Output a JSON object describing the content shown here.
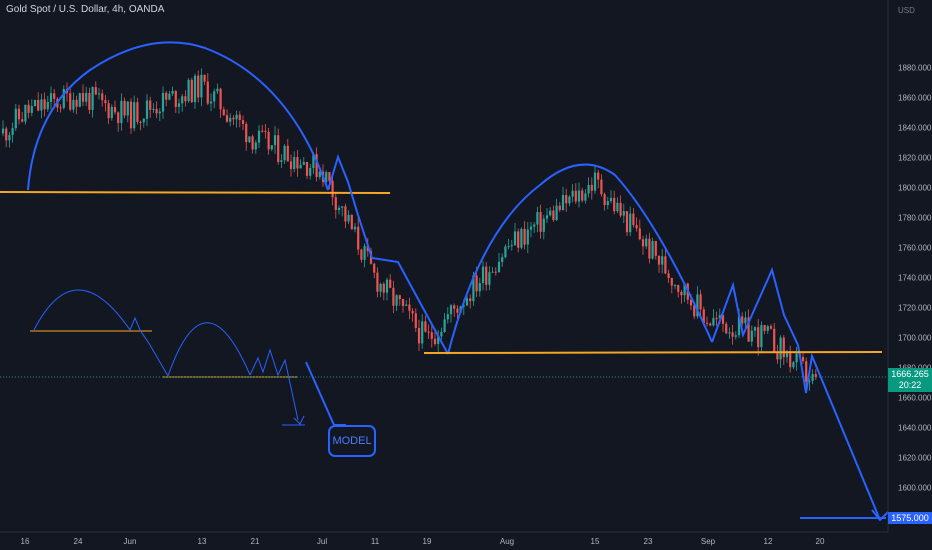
{
  "header": {
    "title": "Gold Spot / U.S. Dollar, 4h, OANDA"
  },
  "currency": "USD",
  "current_price": {
    "value": "1666.265",
    "countdown": "20:22"
  },
  "target_price": "1575.000",
  "annotation": {
    "model_label": "MODEL"
  },
  "colors": {
    "up": "#26a69a",
    "down": "#ef5350",
    "pattern": "#2962ff",
    "neckline": "#f5a623",
    "current": "#089981"
  },
  "chart_data": {
    "type": "candlestick",
    "title": "Gold Spot / U.S. Dollar, 4h, OANDA",
    "ylabel": "USD",
    "ylim": [
      1570,
      1907
    ],
    "y_ticks": [
      1580,
      1600,
      1620,
      1640,
      1660,
      1680,
      1700,
      1720,
      1740,
      1760,
      1780,
      1800,
      1820,
      1840,
      1860,
      1880
    ],
    "x_ticks": [
      "16",
      "24",
      "Jun",
      "13",
      "21",
      "Jul",
      "11",
      "19",
      "Aug",
      "15",
      "23",
      "Sep",
      "12",
      "20"
    ],
    "grid": false,
    "price_path": [
      [
        "16",
        1850
      ],
      [
        "24",
        1862
      ],
      [
        "Jun",
        1848
      ],
      [
        "13",
        1868
      ],
      [
        "21",
        1832
      ],
      [
        "Jul",
        1812
      ],
      [
        "11",
        1740
      ],
      [
        "19",
        1698
      ],
      [
        "Aug",
        1760
      ],
      [
        "15",
        1804
      ],
      [
        "23",
        1760
      ],
      [
        "Sep",
        1712
      ],
      [
        "12",
        1700
      ],
      [
        "20",
        1666
      ]
    ],
    "levels": [
      {
        "name": "neckline 1",
        "price": 1788
      },
      {
        "name": "neckline 2",
        "price": 1683
      },
      {
        "name": "target",
        "price": 1575
      },
      {
        "name": "current",
        "price": 1666.265
      }
    ]
  }
}
